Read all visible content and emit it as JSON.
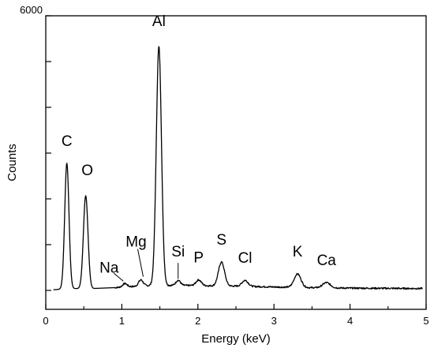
{
  "chart_data": {
    "type": "line",
    "xlabel": "Energy (keV)",
    "ylabel": "Counts",
    "xlim": [
      0,
      5
    ],
    "ylim": [
      0,
      6000
    ],
    "x_ticks": [
      0,
      1,
      2,
      3,
      4,
      5
    ],
    "x_tick_labels": [
      "0",
      "1",
      "2",
      "3",
      "4",
      "5"
    ],
    "y_ticks": [
      0,
      1000,
      2000,
      3000,
      4000,
      5000,
      6000
    ],
    "y_tick_labels": [
      "",
      "",
      "",
      "",
      "",
      "",
      "6000"
    ],
    "grid": false,
    "legend": "none",
    "line_color": "#000000",
    "background": [
      [
        0.0,
        0
      ],
      [
        0.15,
        20
      ],
      [
        0.3,
        40
      ],
      [
        0.6,
        40
      ],
      [
        0.9,
        60
      ],
      [
        1.2,
        90
      ],
      [
        1.4,
        110
      ],
      [
        1.8,
        110
      ],
      [
        2.2,
        100
      ],
      [
        2.6,
        90
      ],
      [
        3.0,
        75
      ],
      [
        3.5,
        60
      ],
      [
        4.0,
        50
      ],
      [
        4.5,
        45
      ],
      [
        5.0,
        40
      ]
    ],
    "peaks": [
      {
        "label": "C",
        "energy": 0.277,
        "counts": 2780
      },
      {
        "label": "O",
        "energy": 0.525,
        "counts": 2070
      },
      {
        "label": "Na",
        "energy": 1.04,
        "counts": 150
      },
      {
        "label": "Mg",
        "energy": 1.25,
        "counts": 230
      },
      {
        "label": "Al",
        "energy": 1.487,
        "counts": 5330
      },
      {
        "label": "Si",
        "energy": 1.74,
        "counts": 220
      },
      {
        "label": "P",
        "energy": 2.01,
        "counts": 230
      },
      {
        "label": "S",
        "energy": 2.31,
        "counts": 620
      },
      {
        "label": "Cl",
        "energy": 2.62,
        "counts": 220
      },
      {
        "label": "K",
        "energy": 3.31,
        "counts": 360
      },
      {
        "label": "Ca",
        "energy": 3.69,
        "counts": 170
      }
    ]
  }
}
